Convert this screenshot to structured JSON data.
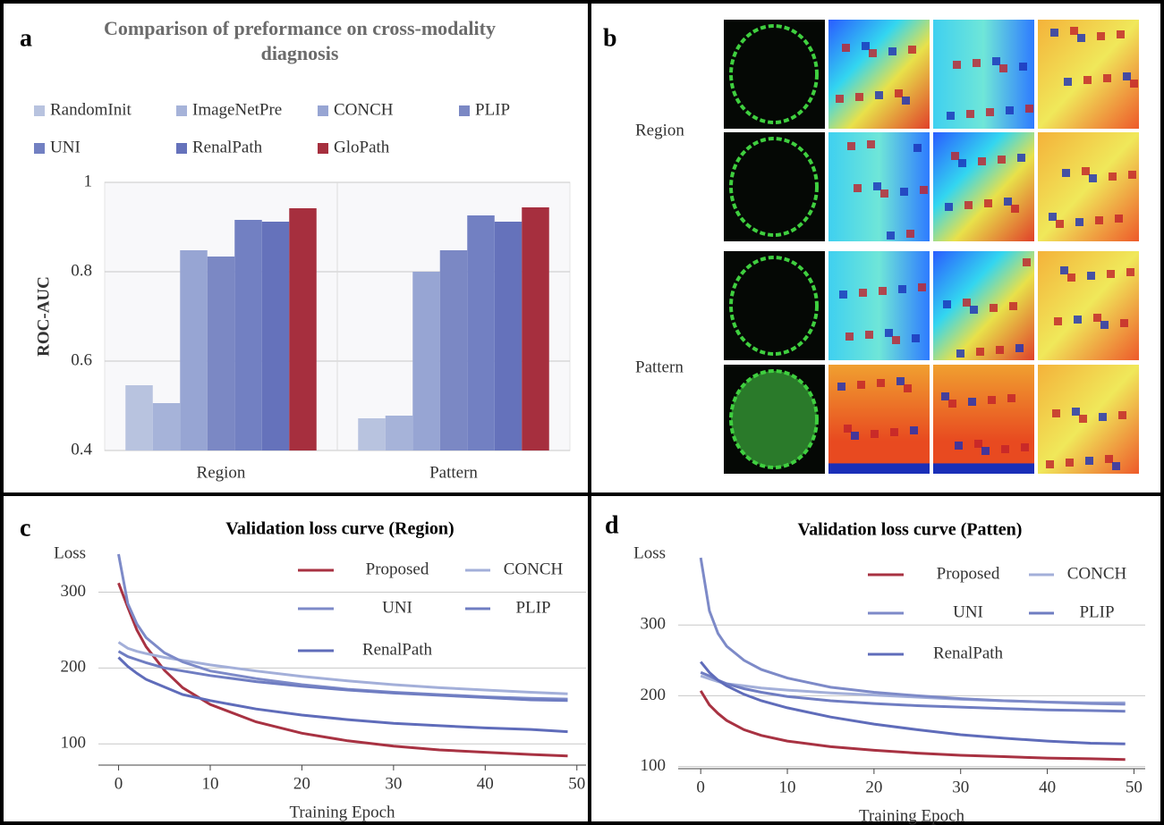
{
  "panel_b": {
    "panel": "b",
    "rows": [
      "Region",
      "Pattern"
    ]
  },
  "chart_data": [
    {
      "type": "bar",
      "panel": "a",
      "title": "Comparison of preformance on cross-modality diagnosis",
      "ylabel": "ROC-AUC",
      "categories": [
        "Region",
        "Pattern"
      ],
      "ylim": [
        0.4,
        1
      ],
      "yticks": [
        0.4,
        0.6,
        0.8,
        1
      ],
      "grid": true,
      "series": [
        {
          "name": "RandomInit",
          "color": "#b8c3df",
          "values": [
            0.546,
            0.472
          ]
        },
        {
          "name": "ImageNetPre",
          "color": "#a6b3d9",
          "values": [
            0.506,
            0.478
          ]
        },
        {
          "name": "CONCH",
          "color": "#97a5d3",
          "values": [
            0.848,
            0.8
          ]
        },
        {
          "name": "PLIP",
          "color": "#7b88c4",
          "values": [
            0.834,
            0.848
          ]
        },
        {
          "name": "UNI",
          "color": "#7280c2",
          "values": [
            0.916,
            0.926
          ]
        },
        {
          "name": "RenalPath",
          "color": "#6572bb",
          "values": [
            0.912,
            0.912
          ]
        },
        {
          "name": "GloPath",
          "color": "#a62f3e",
          "values": [
            0.942,
            0.944
          ]
        }
      ]
    },
    {
      "type": "line",
      "panel": "c",
      "title": "Validation loss curve (Region)",
      "ylabel": "Loss",
      "xlabel": "Training Epoch",
      "x": [
        0,
        1,
        2,
        3,
        5,
        7,
        10,
        15,
        20,
        25,
        30,
        35,
        40,
        45,
        49
      ],
      "xlim": [
        -2.2,
        51
      ],
      "xticks": [
        0,
        10,
        20,
        30,
        40,
        50
      ],
      "ylim": [
        72,
        350
      ],
      "yticks": [
        100,
        200,
        300
      ],
      "grid": true,
      "series": [
        {
          "name": "Proposed",
          "color": "#a83242",
          "values": [
            312,
            280,
            250,
            228,
            197,
            174,
            152,
            129,
            114,
            104,
            97,
            92,
            89,
            86,
            84
          ]
        },
        {
          "name": "CONCH",
          "color": "#a3afd9",
          "values": [
            234,
            226,
            222,
            219,
            214,
            210,
            204,
            196,
            189,
            183,
            178,
            174,
            171,
            168,
            166
          ]
        },
        {
          "name": "UNI",
          "color": "#7d8ac8",
          "values": [
            350,
            285,
            258,
            240,
            220,
            208,
            196,
            186,
            178,
            172,
            168,
            165,
            162,
            160,
            159
          ]
        },
        {
          "name": "PLIP",
          "color": "#6f7dc2",
          "values": [
            222,
            215,
            211,
            207,
            200,
            196,
            190,
            182,
            176,
            171,
            167,
            164,
            161,
            158,
            157
          ]
        },
        {
          "name": "RenalPath",
          "color": "#5f6cba",
          "values": [
            214,
            202,
            193,
            185,
            175,
            165,
            157,
            146,
            138,
            132,
            127,
            124,
            121,
            119,
            116
          ]
        }
      ]
    },
    {
      "type": "line",
      "panel": "d",
      "title": "Validation loss curve (Patten)",
      "ylabel": "Loss",
      "xlabel": "Training Epoch",
      "x": [
        0,
        1,
        2,
        3,
        5,
        7,
        10,
        15,
        20,
        25,
        30,
        35,
        40,
        45,
        49
      ],
      "xlim": [
        -2.6,
        51.3
      ],
      "xticks": [
        0,
        10,
        20,
        30,
        40,
        50
      ],
      "ylim": [
        97,
        400
      ],
      "yticks": [
        100,
        200,
        300
      ],
      "grid": true,
      "series": [
        {
          "name": "Proposed",
          "color": "#a83242",
          "values": [
            207,
            187,
            175,
            165,
            152,
            144,
            136,
            128,
            123,
            119,
            116,
            114,
            112,
            111,
            110
          ]
        },
        {
          "name": "CONCH",
          "color": "#a3afd9",
          "values": [
            228,
            224,
            220,
            217,
            214,
            211,
            208,
            204,
            201,
            198,
            195,
            193,
            191,
            190,
            190
          ]
        },
        {
          "name": "UNI",
          "color": "#7d8ac8",
          "values": [
            395,
            320,
            288,
            270,
            250,
            237,
            225,
            212,
            205,
            200,
            196,
            193,
            191,
            189,
            188
          ]
        },
        {
          "name": "PLIP",
          "color": "#6f7dc2",
          "values": [
            233,
            228,
            222,
            217,
            210,
            205,
            199,
            193,
            189,
            186,
            184,
            182,
            180,
            179,
            178
          ]
        },
        {
          "name": "RenalPath",
          "color": "#5f6cba",
          "values": [
            248,
            233,
            222,
            214,
            202,
            193,
            183,
            170,
            160,
            152,
            145,
            140,
            136,
            133,
            132
          ]
        }
      ]
    }
  ]
}
